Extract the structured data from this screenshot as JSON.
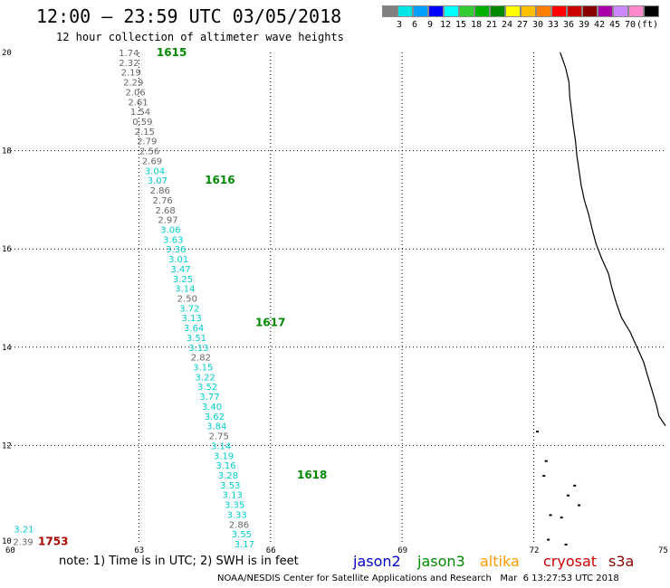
{
  "header": {
    "title": "12:00 – 23:59 UTC 03/05/2018",
    "subtitle": "12 hour collection of altimeter wave heights"
  },
  "legend": {
    "colors": [
      "#808080",
      "#00e5e5",
      "#00a0ff",
      "#0000ff",
      "#00ffff",
      "#33cc33",
      "#00b000",
      "#008800",
      "#ffff00",
      "#ffc000",
      "#ff8000",
      "#ff0000",
      "#cc0000",
      "#880000",
      "#aa00aa",
      "#cc88ff",
      "#ff88cc",
      "#000000"
    ],
    "labels": [
      "3",
      "6",
      "9",
      "12",
      "15",
      "18",
      "21",
      "24",
      "27",
      "30",
      "33",
      "36",
      "39",
      "42",
      "45",
      "70",
      "(ft)"
    ]
  },
  "map": {
    "lon_ticks": [
      "60",
      "63",
      "66",
      "69",
      "72",
      "75"
    ],
    "lat_ticks": [
      "10",
      "12",
      "14",
      "16",
      "18",
      "20"
    ],
    "colors": {
      "grid": "#000000",
      "gray": "#666666",
      "cyan": "#00cccc",
      "pass": "#008800",
      "red": "#aa0000"
    },
    "readings": [
      {
        "lat": 20.0,
        "lon": 62.79,
        "v": "1.74",
        "c": "gray"
      },
      {
        "lat": 19.8,
        "lon": 62.79,
        "v": "2.32",
        "c": "gray"
      },
      {
        "lat": 19.6,
        "lon": 62.84,
        "v": "2.19",
        "c": "gray"
      },
      {
        "lat": 19.4,
        "lon": 62.89,
        "v": "2.29",
        "c": "gray"
      },
      {
        "lat": 19.2,
        "lon": 62.94,
        "v": "2.06",
        "c": "gray"
      },
      {
        "lat": 19.0,
        "lon": 63.0,
        "v": "2.61",
        "c": "gray"
      },
      {
        "lat": 18.8,
        "lon": 63.05,
        "v": "1.54",
        "c": "gray"
      },
      {
        "lat": 18.6,
        "lon": 63.1,
        "v": "0.59",
        "c": "gray"
      },
      {
        "lat": 18.4,
        "lon": 63.15,
        "v": "2.15",
        "c": "gray"
      },
      {
        "lat": 18.2,
        "lon": 63.2,
        "v": "2.79",
        "c": "gray"
      },
      {
        "lat": 18.0,
        "lon": 63.26,
        "v": "2.56",
        "c": "gray"
      },
      {
        "lat": 17.8,
        "lon": 63.32,
        "v": "2.69",
        "c": "gray"
      },
      {
        "lat": 17.6,
        "lon": 63.38,
        "v": "3.04",
        "c": "cyan"
      },
      {
        "lat": 17.4,
        "lon": 63.44,
        "v": "3.07",
        "c": "cyan"
      },
      {
        "lat": 17.2,
        "lon": 63.5,
        "v": "2.86",
        "c": "gray"
      },
      {
        "lat": 17.0,
        "lon": 63.56,
        "v": "2.76",
        "c": "gray"
      },
      {
        "lat": 16.8,
        "lon": 63.62,
        "v": "2.68",
        "c": "gray"
      },
      {
        "lat": 16.6,
        "lon": 63.68,
        "v": "2.97",
        "c": "gray"
      },
      {
        "lat": 16.4,
        "lon": 63.74,
        "v": "3.06",
        "c": "cyan"
      },
      {
        "lat": 16.2,
        "lon": 63.8,
        "v": "3.63",
        "c": "cyan"
      },
      {
        "lat": 16.0,
        "lon": 63.86,
        "v": "3.36",
        "c": "cyan"
      },
      {
        "lat": 15.8,
        "lon": 63.92,
        "v": "3.01",
        "c": "cyan"
      },
      {
        "lat": 15.6,
        "lon": 63.97,
        "v": "3.47",
        "c": "cyan"
      },
      {
        "lat": 15.4,
        "lon": 64.02,
        "v": "3.25",
        "c": "cyan"
      },
      {
        "lat": 15.2,
        "lon": 64.07,
        "v": "3.14",
        "c": "cyan"
      },
      {
        "lat": 15.0,
        "lon": 64.12,
        "v": "2.50",
        "c": "gray"
      },
      {
        "lat": 14.8,
        "lon": 64.17,
        "v": "3.72",
        "c": "cyan"
      },
      {
        "lat": 14.6,
        "lon": 64.22,
        "v": "3.13",
        "c": "cyan"
      },
      {
        "lat": 14.4,
        "lon": 64.27,
        "v": "3.64",
        "c": "cyan"
      },
      {
        "lat": 14.2,
        "lon": 64.33,
        "v": "3.51",
        "c": "cyan"
      },
      {
        "lat": 14.0,
        "lon": 64.38,
        "v": "3.13",
        "c": "cyan"
      },
      {
        "lat": 13.8,
        "lon": 64.43,
        "v": "2.82",
        "c": "gray"
      },
      {
        "lat": 13.6,
        "lon": 64.48,
        "v": "3.15",
        "c": "cyan"
      },
      {
        "lat": 13.4,
        "lon": 64.53,
        "v": "3.22",
        "c": "cyan"
      },
      {
        "lat": 13.2,
        "lon": 64.58,
        "v": "3.52",
        "c": "cyan"
      },
      {
        "lat": 13.0,
        "lon": 64.63,
        "v": "3.77",
        "c": "cyan"
      },
      {
        "lat": 12.8,
        "lon": 64.68,
        "v": "3.40",
        "c": "cyan"
      },
      {
        "lat": 12.6,
        "lon": 64.74,
        "v": "3.62",
        "c": "cyan"
      },
      {
        "lat": 12.4,
        "lon": 64.79,
        "v": "3.84",
        "c": "cyan"
      },
      {
        "lat": 12.2,
        "lon": 64.84,
        "v": "2.75",
        "c": "gray"
      },
      {
        "lat": 12.0,
        "lon": 64.89,
        "v": "3.14",
        "c": "cyan"
      },
      {
        "lat": 11.8,
        "lon": 64.95,
        "v": "3.19",
        "c": "cyan"
      },
      {
        "lat": 11.6,
        "lon": 65.0,
        "v": "3.16",
        "c": "cyan"
      },
      {
        "lat": 11.4,
        "lon": 65.05,
        "v": "3.28",
        "c": "cyan"
      },
      {
        "lat": 11.2,
        "lon": 65.1,
        "v": "3.53",
        "c": "cyan"
      },
      {
        "lat": 11.0,
        "lon": 65.15,
        "v": "3.13",
        "c": "cyan"
      },
      {
        "lat": 10.8,
        "lon": 65.2,
        "v": "3.35",
        "c": "cyan"
      },
      {
        "lat": 10.6,
        "lon": 65.25,
        "v": "3.33",
        "c": "cyan"
      },
      {
        "lat": 10.4,
        "lon": 65.3,
        "v": "2.86",
        "c": "gray"
      },
      {
        "lat": 10.2,
        "lon": 65.36,
        "v": "3.55",
        "c": "cyan"
      },
      {
        "lat": 10.0,
        "lon": 65.42,
        "v": "3.17",
        "c": "cyan"
      },
      {
        "lat": 10.3,
        "lon": 60.4,
        "v": "3.21",
        "c": "cyan"
      },
      {
        "lat": 10.05,
        "lon": 60.38,
        "v": "2.39",
        "c": "gray"
      }
    ],
    "pass_labels": [
      {
        "lat": 20.0,
        "lon": 63.65,
        "v": "1615",
        "c": "pass"
      },
      {
        "lat": 17.4,
        "lon": 64.75,
        "v": "1616",
        "c": "pass"
      },
      {
        "lat": 14.5,
        "lon": 65.9,
        "v": "1617",
        "c": "pass"
      },
      {
        "lat": 11.4,
        "lon": 66.85,
        "v": "1618",
        "c": "pass"
      },
      {
        "lat": 10.05,
        "lon": 60.95,
        "v": "1753",
        "c": "red"
      }
    ],
    "coastline": [
      [
        20.0,
        72.6
      ],
      [
        19.7,
        72.72
      ],
      [
        19.4,
        72.8
      ],
      [
        19.1,
        72.82
      ],
      [
        18.8,
        72.86
      ],
      [
        18.5,
        72.9
      ],
      [
        18.2,
        72.95
      ],
      [
        17.9,
        72.98
      ],
      [
        17.6,
        73.03
      ],
      [
        17.3,
        73.08
      ],
      [
        17.0,
        73.15
      ],
      [
        16.7,
        73.25
      ],
      [
        16.4,
        73.33
      ],
      [
        16.1,
        73.42
      ],
      [
        15.8,
        73.55
      ],
      [
        15.5,
        73.7
      ],
      [
        15.2,
        73.78
      ],
      [
        14.9,
        73.88
      ],
      [
        14.6,
        74.0
      ],
      [
        14.3,
        74.2
      ],
      [
        14.0,
        74.35
      ],
      [
        13.7,
        74.5
      ],
      [
        13.4,
        74.6
      ],
      [
        13.1,
        74.7
      ],
      [
        12.8,
        74.8
      ],
      [
        12.6,
        74.85
      ],
      [
        12.4,
        75.0
      ]
    ],
    "islands": [
      [
        11.4,
        72.2
      ],
      [
        11.0,
        72.75
      ],
      [
        10.8,
        73.0
      ],
      [
        10.6,
        72.35
      ],
      [
        10.55,
        72.6
      ],
      [
        10.1,
        72.3
      ],
      [
        10.0,
        72.7
      ],
      [
        12.3,
        72.05
      ],
      [
        11.7,
        72.25
      ],
      [
        11.2,
        72.9
      ]
    ]
  },
  "footer": {
    "note": "note: 1) Time is in UTC; 2) SWH is in feet",
    "satellites": [
      {
        "name": "jason2",
        "color": "#0000cc"
      },
      {
        "name": "jason3",
        "color": "#008800"
      },
      {
        "name": "altika",
        "color": "#ff9900"
      },
      {
        "name": "cryosat",
        "color": "#cc0000"
      },
      {
        "name": "s3a",
        "color": "#880000"
      }
    ],
    "credit": "NOAA/NESDIS Center for Satellite Applications and Research   Mar  6 13:27:53 UTC 2018"
  }
}
